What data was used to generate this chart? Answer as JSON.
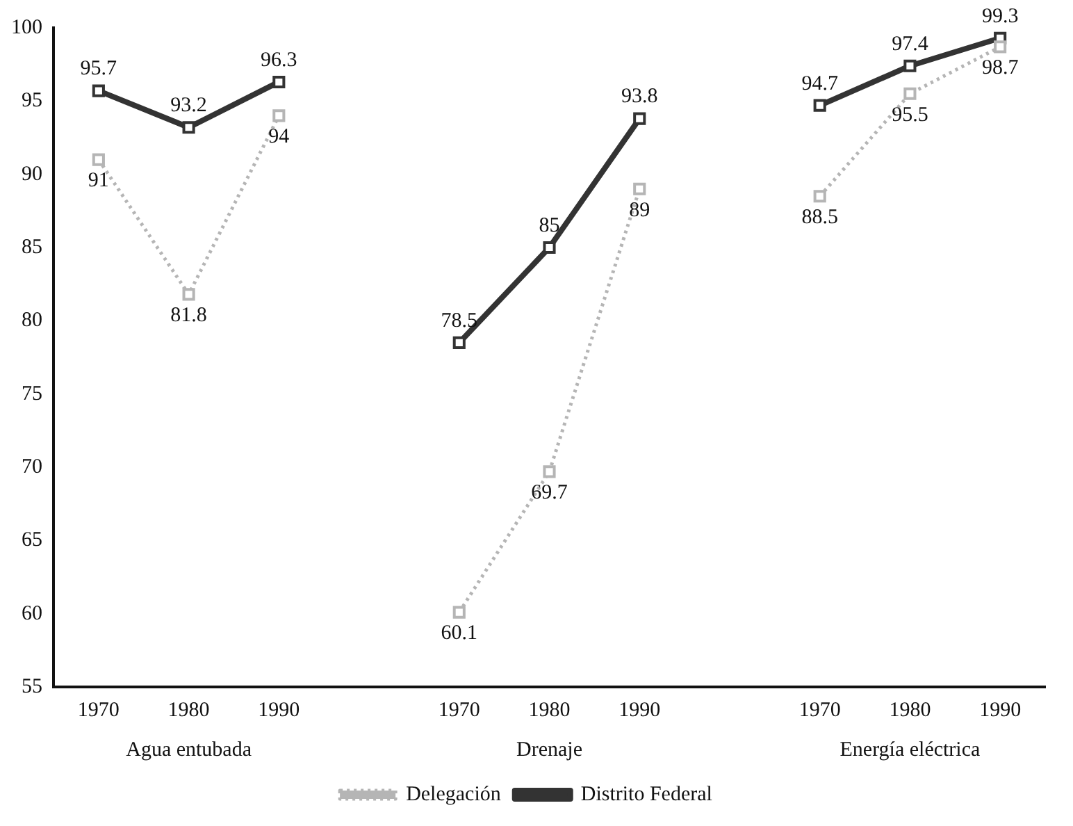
{
  "chart_data": {
    "type": "line",
    "categories": [
      "1970",
      "1980",
      "1990",
      null,
      "1970",
      "1980",
      "1990",
      null,
      "1970",
      "1980",
      "1990"
    ],
    "series": [
      {
        "name": "Delegación",
        "color": "#b5b5b5",
        "line_style": "dotted",
        "values": [
          91,
          81.8,
          94,
          null,
          60.1,
          69.7,
          89,
          null,
          88.5,
          95.5,
          98.7
        ]
      },
      {
        "name": "Distrito Federal",
        "color": "#333333",
        "line_style": "solid",
        "values": [
          95.7,
          93.2,
          96.3,
          null,
          78.5,
          85,
          93.8,
          null,
          94.7,
          97.4,
          99.3
        ]
      }
    ],
    "ylim": [
      55,
      100
    ],
    "yticks": [
      55,
      60,
      65,
      70,
      75,
      80,
      85,
      90,
      95,
      100
    ],
    "annotations": [
      "Agua entubada",
      "Drenaje",
      "Energía eléctrica"
    ],
    "marker": "square",
    "grid": false,
    "legend": "bottom",
    "data_labels": true
  }
}
